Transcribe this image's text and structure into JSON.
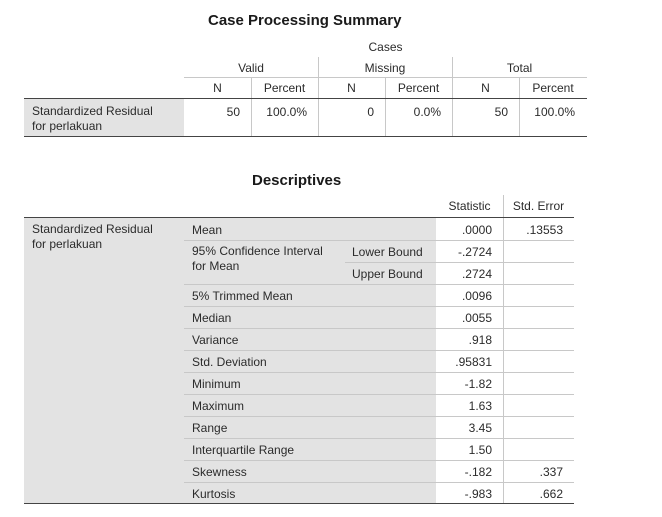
{
  "case_processing": {
    "title": "Case Processing Summary",
    "cases_header": "Cases",
    "groups": [
      "Valid",
      "Missing",
      "Total"
    ],
    "subheaders": [
      "N",
      "Percent",
      "N",
      "Percent",
      "N",
      "Percent"
    ],
    "row_label_line1": "Standardized Residual",
    "row_label_line2": "for perlakuan",
    "values": [
      "50",
      "100.0%",
      "0",
      "0.0%",
      "50",
      "100.0%"
    ]
  },
  "descriptives": {
    "title": "Descriptives",
    "col_statistic": "Statistic",
    "col_std_error": "Std. Error",
    "row_label_line1": "Standardized Residual",
    "row_label_line2": "for perlakuan",
    "ci_label_line1": "95% Confidence Interval",
    "ci_label_line2": "for Mean",
    "rows": [
      {
        "label": "Mean",
        "statistic": ".0000",
        "std_error": ".13553"
      },
      {
        "label": "Lower Bound",
        "statistic": "-.2724",
        "std_error": ""
      },
      {
        "label": "Upper Bound",
        "statistic": ".2724",
        "std_error": ""
      },
      {
        "label": "5% Trimmed Mean",
        "statistic": ".0096",
        "std_error": ""
      },
      {
        "label": "Median",
        "statistic": ".0055",
        "std_error": ""
      },
      {
        "label": "Variance",
        "statistic": ".918",
        "std_error": ""
      },
      {
        "label": "Std. Deviation",
        "statistic": ".95831",
        "std_error": ""
      },
      {
        "label": "Minimum",
        "statistic": "-1.82",
        "std_error": ""
      },
      {
        "label": "Maximum",
        "statistic": "1.63",
        "std_error": ""
      },
      {
        "label": "Range",
        "statistic": "3.45",
        "std_error": ""
      },
      {
        "label": "Interquartile Range",
        "statistic": "1.50",
        "std_error": ""
      },
      {
        "label": "Skewness",
        "statistic": "-.182",
        "std_error": ".337"
      },
      {
        "label": "Kurtosis",
        "statistic": "-.983",
        "std_error": ".662"
      }
    ]
  }
}
